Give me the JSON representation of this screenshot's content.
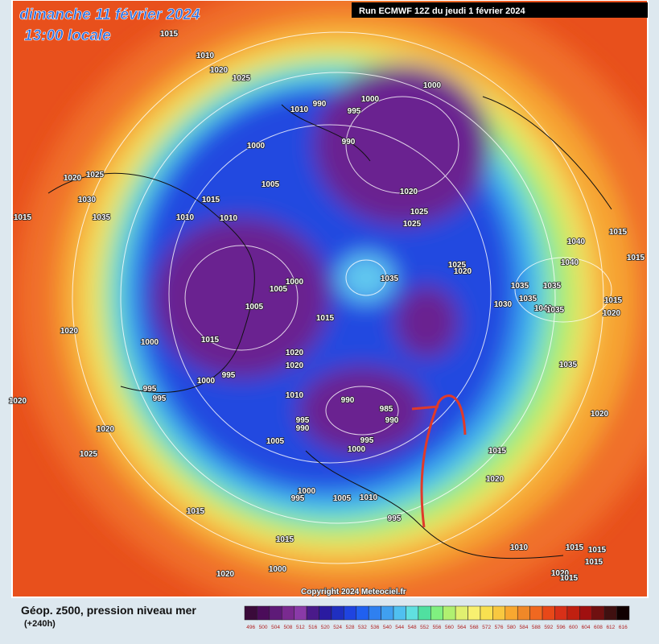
{
  "header": {
    "title": "dimanche 11 février 2024",
    "subtitle": "13:00 locale",
    "run": "Run ECMWF 12Z du jeudi 1 février 2024"
  },
  "copyright": "Copyright 2024 Meteociel.fr",
  "legend": {
    "title": "Géop. z500, pression niveau mer",
    "lead": "(+240h)",
    "labels": [
      496,
      500,
      504,
      508,
      512,
      516,
      520,
      524,
      528,
      532,
      536,
      540,
      544,
      548,
      552,
      556,
      560,
      564,
      568,
      572,
      576,
      580,
      584,
      588,
      592,
      596,
      600,
      604,
      608,
      612,
      616
    ],
    "colors": [
      "#3a0a3a",
      "#4b0c5a",
      "#5e1a78",
      "#7a2a90",
      "#8a3aa8",
      "#4a1a8a",
      "#2a1aa0",
      "#1f2fc0",
      "#1f44e0",
      "#2060f0",
      "#2f80f0",
      "#40a0f0",
      "#50c0f0",
      "#60e0e0",
      "#50e0a0",
      "#80f080",
      "#b0f070",
      "#e0f070",
      "#f8f070",
      "#f8e050",
      "#f8c840",
      "#f8a830",
      "#f08828",
      "#f06820",
      "#e84818",
      "#d83018",
      "#c02010",
      "#a01010",
      "#701010",
      "#401010",
      "#100000"
    ]
  },
  "isobar_labels": [
    1015,
    1010,
    1020,
    1025,
    1010,
    990,
    995,
    1000,
    1000,
    990,
    1000,
    1020,
    1025,
    1030,
    1035,
    1015,
    1015,
    1005,
    1010,
    1010,
    1020,
    1025,
    1025,
    1040,
    1040,
    1015,
    1015,
    1035,
    1035,
    1025,
    1020,
    1005,
    1000,
    1005,
    1015,
    1000,
    1015,
    1020,
    1020,
    1020,
    995,
    1000,
    995,
    995,
    1010,
    990,
    985,
    990,
    995,
    990,
    1005,
    995,
    1000,
    1020,
    1020,
    1025,
    1015,
    1000,
    995,
    1005,
    1010,
    995,
    1015,
    1035,
    1030,
    1035,
    1040,
    1035,
    1015,
    1020,
    1035,
    1020,
    1015,
    1020,
    1010,
    1015,
    1015,
    1015,
    1020,
    1015,
    1020,
    1000,
    1005
  ]
}
